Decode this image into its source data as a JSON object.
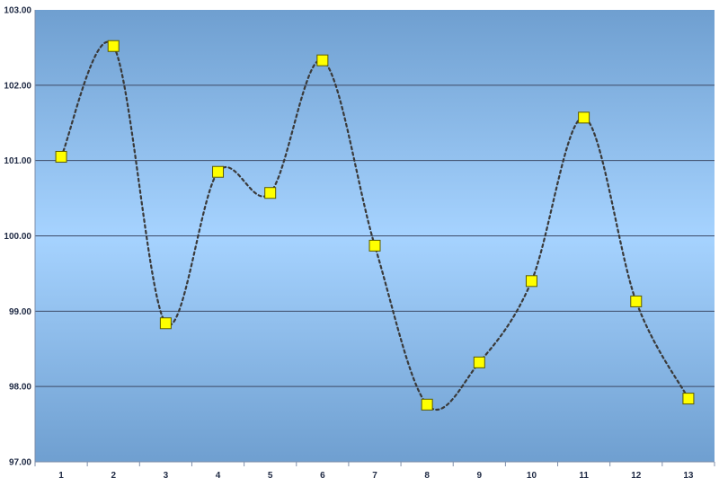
{
  "chart_data": {
    "type": "line",
    "title": "",
    "xlabel": "",
    "ylabel": "",
    "categories": [
      "1",
      "2",
      "3",
      "4",
      "5",
      "6",
      "7",
      "8",
      "9",
      "10",
      "11",
      "12",
      "13"
    ],
    "series": [
      {
        "values": [
          101.05,
          102.52,
          98.84,
          100.85,
          100.57,
          102.33,
          99.87,
          97.76,
          98.32,
          99.4,
          101.57,
          99.13,
          97.84
        ],
        "line_color": "#3a3a3a",
        "line_style": "dotted",
        "smooth": true,
        "marker": "square",
        "marker_color": "#ffff00",
        "marker_edge": "#5a5a00"
      }
    ],
    "ylim": [
      97.0,
      103.0
    ],
    "yticks": [
      "97.00",
      "98.00",
      "99.00",
      "100.00",
      "101.00",
      "102.00",
      "103.00"
    ],
    "grid": "horizontal",
    "legend": "none",
    "colors": {
      "plot_edge": "#6f9fd0",
      "plot_center": "#a6d3ff",
      "gridline": "#3c4a66",
      "axis": "#7f8faa"
    }
  }
}
